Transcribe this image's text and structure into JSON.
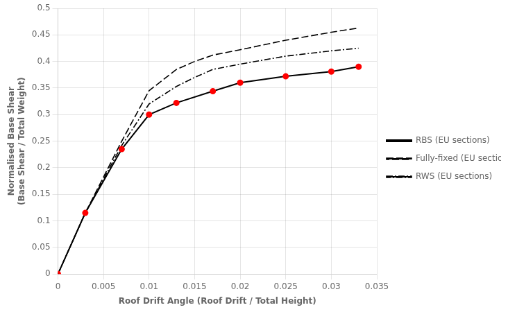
{
  "chart_data": {
    "type": "line",
    "xlabel": "Roof Drift Angle (Roof Drift / Total Height)",
    "ylabel": "Normalised Base Shear\n(Base Shear / Total Weight)",
    "xlim": [
      0,
      0.035
    ],
    "ylim": [
      0,
      0.5
    ],
    "xticks": [
      0,
      0.005,
      0.01,
      0.015,
      0.02,
      0.025,
      0.03,
      0.035
    ],
    "yticks": [
      0,
      0.05,
      0.1,
      0.15,
      0.2,
      0.25,
      0.3,
      0.35,
      0.4,
      0.45,
      0.5
    ],
    "grid": true,
    "legend": "right",
    "series": [
      {
        "name": "RBS (EU sections)",
        "color": "#000000",
        "line_style": "solid",
        "marker": "circle",
        "colors": [
          "#ff0000",
          "#ff0000",
          "#ff0000",
          "#ff0000",
          "#ff0000",
          "#ff0000",
          "#ff0000",
          "#ff0000",
          "#ff0000",
          "#ff0000"
        ],
        "x": [
          0.0,
          0.003,
          0.007,
          0.01,
          0.013,
          0.017,
          0.02,
          0.025,
          0.03,
          0.033
        ],
        "values": [
          0.0,
          0.115,
          0.235,
          0.3,
          0.322,
          0.344,
          0.36,
          0.372,
          0.381,
          0.39
        ]
      },
      {
        "name": "Fully-fixed (EU sections)",
        "color": "#000000",
        "line_style": "dashed",
        "marker": "none",
        "x": [
          0.0,
          0.003,
          0.007,
          0.01,
          0.013,
          0.015,
          0.017,
          0.02,
          0.025,
          0.03,
          0.033
        ],
        "values": [
          0.0,
          0.115,
          0.25,
          0.345,
          0.385,
          0.4,
          0.412,
          0.422,
          0.44,
          0.455,
          0.463
        ]
      },
      {
        "name": "RWS (EU sections)",
        "color": "#000000",
        "line_style": "dashdot",
        "marker": "none",
        "x": [
          0.0,
          0.003,
          0.007,
          0.01,
          0.013,
          0.015,
          0.017,
          0.02,
          0.025,
          0.03,
          0.033
        ],
        "values": [
          0.0,
          0.115,
          0.242,
          0.32,
          0.353,
          0.37,
          0.385,
          0.395,
          0.41,
          0.42,
          0.425
        ]
      }
    ]
  }
}
